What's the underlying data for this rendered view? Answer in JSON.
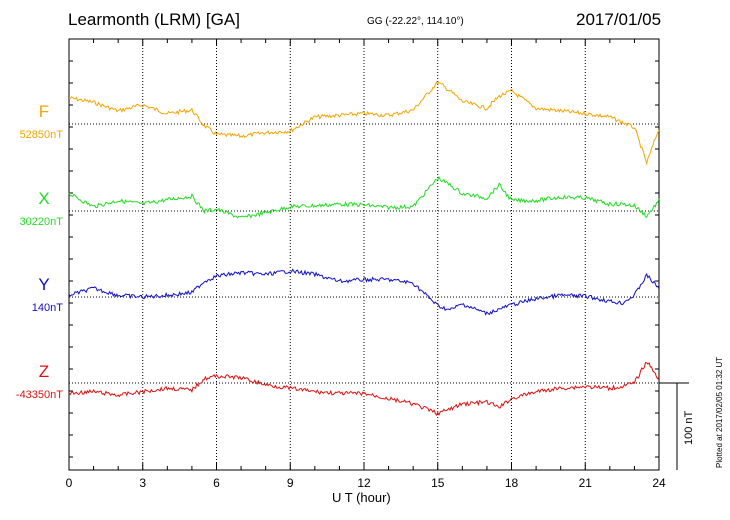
{
  "header": {
    "station": "Learmonth (LRM)  [GA]",
    "coords": "GG (-22.22°, 114.10°)",
    "date": "2017/01/05"
  },
  "footer": {
    "plotted": "Plotted at 2017/02/05 01:32 UT"
  },
  "chart_data": {
    "type": "line",
    "title": "Learmonth (LRM)  [GA]",
    "xlabel": "U T (hour)",
    "xlim": [
      0,
      24
    ],
    "xticks": [
      0,
      3,
      6,
      9,
      12,
      15,
      18,
      21,
      24
    ],
    "x_grid": "dotted vertical lines every 3 hours",
    "scale_bar": "100 nT",
    "units": "nT",
    "x": [
      0,
      1,
      2,
      3,
      4,
      5,
      5.5,
      6,
      7,
      8,
      9,
      10,
      11,
      12,
      13,
      14,
      15,
      15.5,
      16,
      17,
      17.5,
      18,
      19,
      20,
      21,
      22,
      22.5,
      23,
      23.5,
      24
    ],
    "series": [
      {
        "name": "F",
        "baseline_label": "52850nT",
        "baseline": 52850,
        "color": "#f5a500",
        "values": [
          52880,
          52875,
          52865,
          52872,
          52862,
          52866,
          52848,
          52838,
          52836,
          52840,
          52842,
          52858,
          52860,
          52862,
          52860,
          52866,
          52898,
          52888,
          52876,
          52868,
          52882,
          52888,
          52868,
          52865,
          52862,
          52858,
          52852,
          52846,
          52805,
          52845
        ]
      },
      {
        "name": "X",
        "baseline_label": "30220nT",
        "baseline": 30220,
        "color": "#22dd22",
        "values": [
          30240,
          30225,
          30232,
          30228,
          30233,
          30237,
          30220,
          30222,
          30212,
          30218,
          30225,
          30226,
          30228,
          30227,
          30224,
          30225,
          30258,
          30250,
          30240,
          30235,
          30250,
          30232,
          30232,
          30236,
          30235,
          30228,
          30228,
          30226,
          30214,
          30232
        ]
      },
      {
        "name": "Y",
        "baseline_label": "140nT",
        "baseline": 140,
        "color": "#1010c8",
        "values": [
          142,
          150,
          142,
          140,
          142,
          145,
          158,
          164,
          168,
          166,
          170,
          166,
          158,
          160,
          160,
          156,
          130,
          125,
          132,
          121,
          126,
          131,
          138,
          142,
          141,
          135,
          133,
          142,
          165,
          150
        ]
      },
      {
        "name": "Z",
        "baseline_label": "-43350nT",
        "baseline": -43350,
        "color": "#dd1111",
        "values": [
          -43362,
          -43360,
          -43364,
          -43360,
          -43356,
          -43358,
          -43345,
          -43342,
          -43344,
          -43352,
          -43356,
          -43360,
          -43362,
          -43362,
          -43368,
          -43374,
          -43385,
          -43380,
          -43374,
          -43372,
          -43378,
          -43368,
          -43360,
          -43356,
          -43354,
          -43356,
          -43354,
          -43350,
          -43325,
          -43345
        ]
      }
    ]
  }
}
